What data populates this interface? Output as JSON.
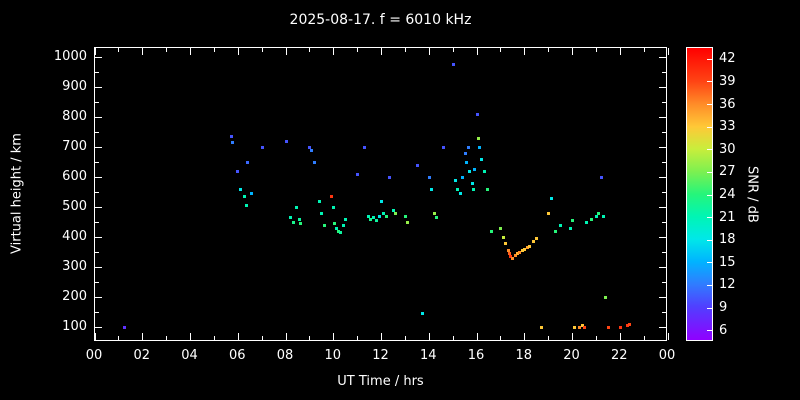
{
  "page": {
    "background": "#000000",
    "axis_color": "#ffffff",
    "text_color": "#ffffff"
  },
  "chart_data": {
    "type": "scatter",
    "title": "2025-08-17. f = 6010 kHz",
    "xlabel": "UT Time / hrs",
    "ylabel": "Virtual height / km",
    "colorbar_label": "SNR / dB",
    "xlim": [
      0,
      24
    ],
    "ylim": [
      50,
      1030
    ],
    "grid": false,
    "x_ticks": [
      {
        "value": 0,
        "label": "00"
      },
      {
        "value": 2,
        "label": "02"
      },
      {
        "value": 4,
        "label": "04"
      },
      {
        "value": 6,
        "label": "06"
      },
      {
        "value": 8,
        "label": "08"
      },
      {
        "value": 10,
        "label": "10"
      },
      {
        "value": 12,
        "label": "12"
      },
      {
        "value": 14,
        "label": "14"
      },
      {
        "value": 16,
        "label": "16"
      },
      {
        "value": 18,
        "label": "18"
      },
      {
        "value": 20,
        "label": "20"
      },
      {
        "value": 22,
        "label": "22"
      },
      {
        "value": 24,
        "label": "00"
      }
    ],
    "y_ticks": [
      {
        "value": 100,
        "label": "100"
      },
      {
        "value": 200,
        "label": "200"
      },
      {
        "value": 300,
        "label": "300"
      },
      {
        "value": 400,
        "label": "400"
      },
      {
        "value": 500,
        "label": "500"
      },
      {
        "value": 600,
        "label": "600"
      },
      {
        "value": 700,
        "label": "700"
      },
      {
        "value": 800,
        "label": "800"
      },
      {
        "value": 900,
        "label": "900"
      },
      {
        "value": 1000,
        "label": "1000"
      }
    ],
    "colorbar": {
      "range": [
        4.5,
        43.5
      ],
      "ticks": [
        6,
        9,
        12,
        15,
        18,
        21,
        24,
        27,
        30,
        33,
        36,
        39,
        42
      ],
      "stops": [
        {
          "value": 4.5,
          "color": "#9000ff"
        },
        {
          "value": 9,
          "color": "#5040ff"
        },
        {
          "value": 12,
          "color": "#2f7dff"
        },
        {
          "value": 15,
          "color": "#00b4ff"
        },
        {
          "value": 18,
          "color": "#00e8e8"
        },
        {
          "value": 21,
          "color": "#00f5b4"
        },
        {
          "value": 24,
          "color": "#26f57a"
        },
        {
          "value": 27,
          "color": "#7df050"
        },
        {
          "value": 30,
          "color": "#c8ee3c"
        },
        {
          "value": 33,
          "color": "#ffc837"
        },
        {
          "value": 36,
          "color": "#ff8c28"
        },
        {
          "value": 39,
          "color": "#ff4514"
        },
        {
          "value": 43.5,
          "color": "#ff0000"
        }
      ]
    },
    "points": [
      [
        1.25,
        100,
        8
      ],
      [
        5.7,
        735,
        10
      ],
      [
        5.75,
        715,
        12
      ],
      [
        5.95,
        620,
        10
      ],
      [
        6.1,
        560,
        18
      ],
      [
        6.25,
        535,
        21
      ],
      [
        6.35,
        505,
        21
      ],
      [
        6.4,
        650,
        11
      ],
      [
        6.55,
        545,
        15
      ],
      [
        7.0,
        700,
        10
      ],
      [
        8.0,
        720,
        10
      ],
      [
        8.2,
        465,
        21
      ],
      [
        8.3,
        450,
        23
      ],
      [
        8.45,
        500,
        21
      ],
      [
        8.55,
        460,
        22
      ],
      [
        8.6,
        445,
        24
      ],
      [
        9.0,
        700,
        10
      ],
      [
        9.05,
        690,
        12
      ],
      [
        9.2,
        650,
        12
      ],
      [
        9.4,
        520,
        21
      ],
      [
        9.5,
        480,
        21
      ],
      [
        9.6,
        440,
        24
      ],
      [
        9.9,
        535,
        40
      ],
      [
        10.0,
        500,
        21
      ],
      [
        10.05,
        445,
        24
      ],
      [
        10.1,
        430,
        21
      ],
      [
        10.2,
        420,
        24
      ],
      [
        10.3,
        415,
        22
      ],
      [
        10.4,
        440,
        21
      ],
      [
        10.5,
        460,
        21
      ],
      [
        11.0,
        610,
        10
      ],
      [
        11.3,
        700,
        10
      ],
      [
        11.45,
        470,
        21
      ],
      [
        11.55,
        460,
        23
      ],
      [
        11.65,
        465,
        21
      ],
      [
        11.8,
        455,
        22
      ],
      [
        11.9,
        470,
        18
      ],
      [
        12.0,
        520,
        18
      ],
      [
        12.1,
        480,
        21
      ],
      [
        12.2,
        470,
        24
      ],
      [
        12.35,
        600,
        10
      ],
      [
        12.5,
        490,
        21
      ],
      [
        12.6,
        480,
        27
      ],
      [
        13.0,
        470,
        24
      ],
      [
        13.1,
        450,
        28
      ],
      [
        13.5,
        640,
        10
      ],
      [
        13.7,
        145,
        18
      ],
      [
        14.0,
        600,
        12
      ],
      [
        14.1,
        560,
        18
      ],
      [
        14.2,
        480,
        28
      ],
      [
        14.3,
        465,
        24
      ],
      [
        14.6,
        700,
        10
      ],
      [
        15.0,
        975,
        10
      ],
      [
        15.1,
        590,
        18
      ],
      [
        15.2,
        560,
        21
      ],
      [
        15.3,
        545,
        18
      ],
      [
        15.4,
        600,
        15
      ],
      [
        15.5,
        680,
        12
      ],
      [
        15.55,
        650,
        15
      ],
      [
        15.65,
        700,
        12
      ],
      [
        15.7,
        620,
        18
      ],
      [
        15.8,
        580,
        18
      ],
      [
        15.85,
        560,
        21
      ],
      [
        15.9,
        625,
        15
      ],
      [
        16.0,
        810,
        10
      ],
      [
        16.05,
        730,
        28
      ],
      [
        16.1,
        700,
        15
      ],
      [
        16.2,
        660,
        18
      ],
      [
        16.3,
        620,
        21
      ],
      [
        16.45,
        560,
        24
      ],
      [
        16.6,
        420,
        24
      ],
      [
        17.0,
        430,
        27
      ],
      [
        17.1,
        400,
        30
      ],
      [
        17.2,
        380,
        33
      ],
      [
        17.3,
        355,
        36
      ],
      [
        17.35,
        345,
        38
      ],
      [
        17.4,
        335,
        40
      ],
      [
        17.5,
        330,
        36
      ],
      [
        17.6,
        340,
        36
      ],
      [
        17.7,
        345,
        34
      ],
      [
        17.8,
        350,
        36
      ],
      [
        17.9,
        355,
        33
      ],
      [
        18.0,
        360,
        33
      ],
      [
        18.1,
        365,
        35
      ],
      [
        18.2,
        370,
        33
      ],
      [
        18.35,
        385,
        33
      ],
      [
        18.5,
        395,
        33
      ],
      [
        18.7,
        100,
        33
      ],
      [
        19.0,
        480,
        33
      ],
      [
        19.1,
        530,
        18
      ],
      [
        19.3,
        420,
        24
      ],
      [
        19.5,
        440,
        21
      ],
      [
        19.9,
        430,
        21
      ],
      [
        20.0,
        455,
        24
      ],
      [
        20.1,
        100,
        33
      ],
      [
        20.3,
        100,
        36
      ],
      [
        20.4,
        105,
        33
      ],
      [
        20.5,
        100,
        39
      ],
      [
        20.6,
        450,
        21
      ],
      [
        20.8,
        460,
        24
      ],
      [
        21.0,
        470,
        21
      ],
      [
        21.1,
        480,
        24
      ],
      [
        21.2,
        600,
        10
      ],
      [
        21.3,
        470,
        21
      ],
      [
        21.4,
        200,
        27
      ],
      [
        21.5,
        100,
        39
      ],
      [
        22.0,
        100,
        40
      ],
      [
        22.3,
        105,
        40
      ],
      [
        22.4,
        110,
        39
      ]
    ]
  }
}
